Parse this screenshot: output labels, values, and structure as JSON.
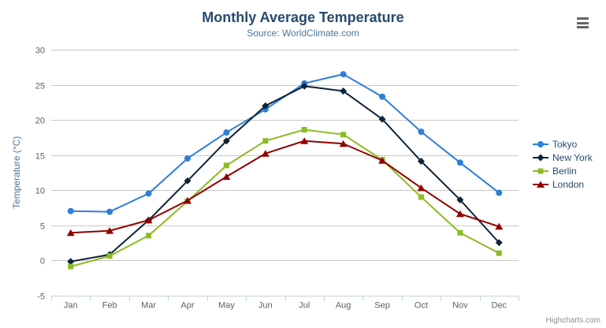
{
  "chart": {
    "title": "Monthly Average Temperature",
    "subtitle": "Source: WorldClimate.com",
    "credits": "Highcharts.com",
    "colors": {
      "title": "#274b6d",
      "subtitle": "#4d759e",
      "axis_label": "#606060",
      "axis_title": "#4d759e",
      "grid": "#c8c8c8",
      "axis_line": "#c0d0e0",
      "legend_text": "#274b6d",
      "credits_text": "#909090",
      "menu_icon": "#666666"
    }
  },
  "chart_data": {
    "type": "line",
    "title": "Monthly Average Temperature",
    "subtitle": "Source: WorldClimate.com",
    "categories": [
      "Jan",
      "Feb",
      "Mar",
      "Apr",
      "May",
      "Jun",
      "Jul",
      "Aug",
      "Sep",
      "Oct",
      "Nov",
      "Dec"
    ],
    "series": [
      {
        "name": "Tokyo",
        "color": "#2f7ed8",
        "marker": "circle",
        "values": [
          7.0,
          6.9,
          9.5,
          14.5,
          18.2,
          21.5,
          25.2,
          26.5,
          23.3,
          18.3,
          13.9,
          9.6
        ]
      },
      {
        "name": "New York",
        "color": "#0d233a",
        "marker": "diamond",
        "values": [
          -0.2,
          0.8,
          5.7,
          11.3,
          17.0,
          22.0,
          24.8,
          24.1,
          20.1,
          14.1,
          8.6,
          2.5
        ]
      },
      {
        "name": "Berlin",
        "color": "#8bbc21",
        "marker": "square",
        "values": [
          -0.9,
          0.6,
          3.5,
          8.4,
          13.5,
          17.0,
          18.6,
          17.9,
          14.3,
          9.0,
          3.9,
          1.0
        ]
      },
      {
        "name": "London",
        "color": "#910000",
        "marker": "triangle",
        "values": [
          3.9,
          4.2,
          5.7,
          8.5,
          11.9,
          15.2,
          17.0,
          16.6,
          14.2,
          10.3,
          6.6,
          4.8
        ]
      }
    ],
    "xlabel": "",
    "ylabel": "Temperature (°C)",
    "ylim": [
      -5,
      30
    ],
    "ytick_step": 5,
    "grid": true,
    "legend_position": "right"
  }
}
